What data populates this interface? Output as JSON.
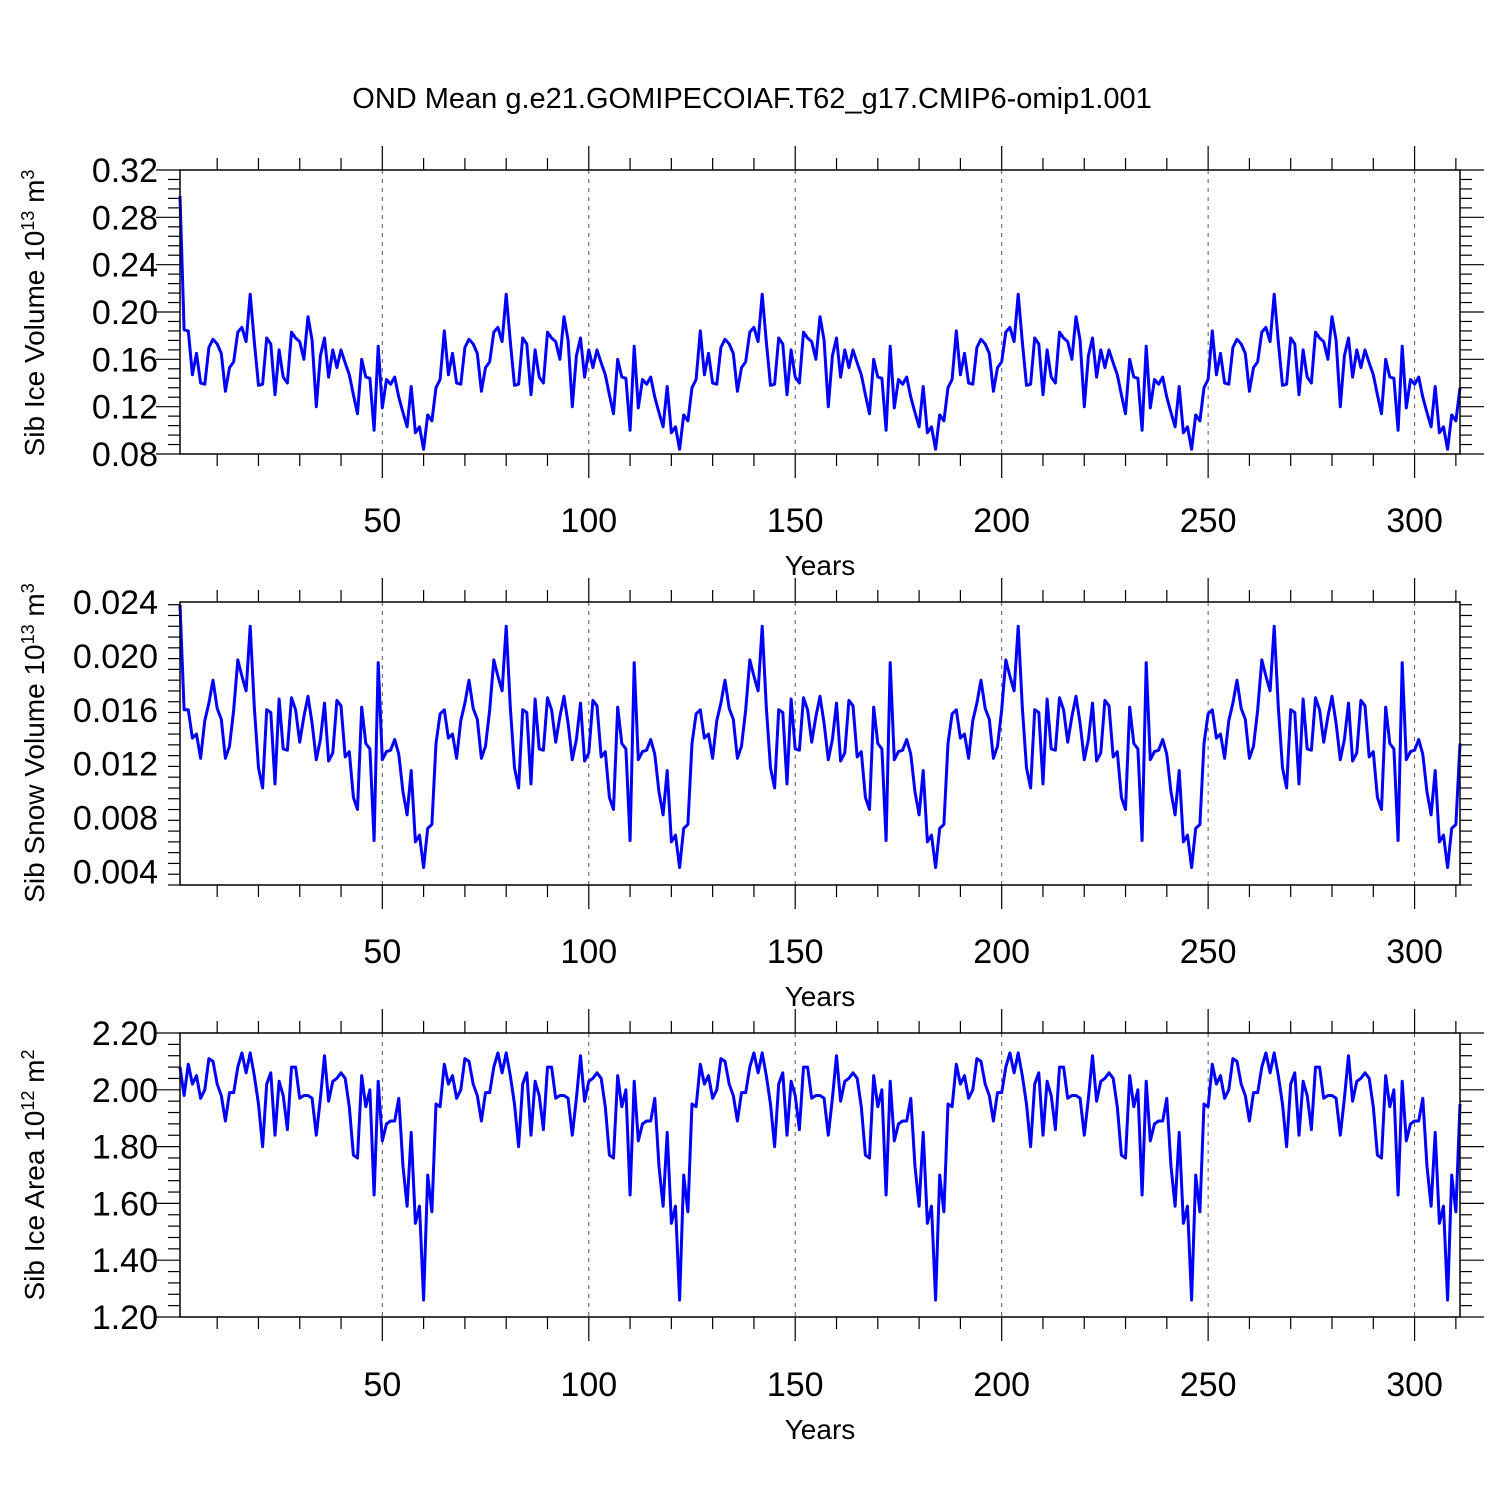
{
  "title": "OND Mean g.e21.GOMIPECOIAF.T62_g17.CMIP6-omip1.001",
  "chart_data": [
    {
      "type": "line",
      "xlabel": "Years",
      "ylabel": "Sib Ice Volume",
      "yunit_base": "10",
      "yunit_exp": "13",
      "yunit_sym": "m",
      "yunit_pow": "3",
      "xlim": [
        1,
        311
      ],
      "ylim": [
        0.08,
        0.32
      ],
      "xticks": [
        50,
        100,
        150,
        200,
        250,
        300
      ],
      "xtick_labels": [
        "50",
        "100",
        "150",
        "200",
        "250",
        "300"
      ],
      "yticks": [
        0.08,
        0.12,
        0.16,
        0.2,
        0.24,
        0.28,
        0.32
      ],
      "ytick_labels": [
        "0.08",
        "0.12",
        "0.16",
        "0.20",
        "0.24",
        "0.28",
        "0.32"
      ],
      "grid": "vertical-dashed",
      "color": "#0000ff",
      "head": [
        0.298,
        0.185
      ],
      "cycle": [
        0.184,
        0.147,
        0.165,
        0.14,
        0.139,
        0.17,
        0.177,
        0.173,
        0.165,
        0.133,
        0.153,
        0.158,
        0.183,
        0.187,
        0.175,
        0.215,
        0.175,
        0.138,
        0.139,
        0.178,
        0.173,
        0.13,
        0.168,
        0.145,
        0.14,
        0.183,
        0.178,
        0.175,
        0.16,
        0.196,
        0.176,
        0.12,
        0.163,
        0.178,
        0.145,
        0.168,
        0.153,
        0.168,
        0.157,
        0.147,
        0.13,
        0.114,
        0.16,
        0.145,
        0.144,
        0.1,
        0.171,
        0.119,
        0.143,
        0.139,
        0.145,
        0.128,
        0.115,
        0.103,
        0.137,
        0.098,
        0.103,
        0.084,
        0.113,
        0.108,
        0.136,
        0.143
      ]
    },
    {
      "type": "line",
      "xlabel": "Years",
      "ylabel": "Sib Snow Volume",
      "yunit_base": "10",
      "yunit_exp": "13",
      "yunit_sym": "m",
      "yunit_pow": "3",
      "xlim": [
        1,
        311
      ],
      "ylim": [
        0.003,
        0.024
      ],
      "xticks": [
        50,
        100,
        150,
        200,
        250,
        300
      ],
      "xtick_labels": [
        "50",
        "100",
        "150",
        "200",
        "250",
        "300"
      ],
      "yticks": [
        0.004,
        0.008,
        0.012,
        0.016,
        0.02,
        0.024
      ],
      "ytick_labels": [
        "0.004",
        "0.008",
        "0.012",
        "0.016",
        "0.020",
        "0.024"
      ],
      "grid": "vertical-dashed",
      "color": "#0000ff",
      "head": [
        0.0238,
        0.016
      ],
      "cycle": [
        0.016,
        0.0139,
        0.0142,
        0.0124,
        0.0152,
        0.0165,
        0.0182,
        0.0161,
        0.0153,
        0.0124,
        0.0133,
        0.016,
        0.0197,
        0.0185,
        0.0174,
        0.0222,
        0.0162,
        0.0117,
        0.0102,
        0.016,
        0.0158,
        0.0105,
        0.0168,
        0.0131,
        0.013,
        0.0169,
        0.016,
        0.0136,
        0.0155,
        0.017,
        0.015,
        0.0123,
        0.0138,
        0.0165,
        0.0122,
        0.0128,
        0.0167,
        0.0163,
        0.0125,
        0.0129,
        0.0095,
        0.0086,
        0.0162,
        0.0135,
        0.0131,
        0.0063,
        0.0195,
        0.0123,
        0.0129,
        0.013,
        0.0138,
        0.0127,
        0.0099,
        0.0082,
        0.0115,
        0.0062,
        0.0067,
        0.0043,
        0.0072,
        0.0075,
        0.0135,
        0.0157
      ]
    },
    {
      "type": "line",
      "xlabel": "Years",
      "ylabel": "Sib Ice Area",
      "yunit_base": "10",
      "yunit_exp": "12",
      "yunit_sym": "m",
      "yunit_pow": "2",
      "xlim": [
        1,
        311
      ],
      "ylim": [
        1.2,
        2.2
      ],
      "xticks": [
        50,
        100,
        150,
        200,
        250,
        300
      ],
      "xtick_labels": [
        "50",
        "100",
        "150",
        "200",
        "250",
        "300"
      ],
      "yticks": [
        1.2,
        1.4,
        1.6,
        1.8,
        2.0,
        2.2
      ],
      "ytick_labels": [
        "1.20",
        "1.40",
        "1.60",
        "1.80",
        "2.00",
        "2.20"
      ],
      "grid": "vertical-dashed",
      "color": "#0000ff",
      "head": [
        2.08,
        1.98
      ],
      "cycle": [
        2.09,
        2.02,
        2.05,
        1.97,
        2.0,
        2.11,
        2.1,
        2.02,
        1.98,
        1.89,
        1.99,
        1.99,
        2.08,
        2.13,
        2.06,
        2.13,
        2.05,
        1.95,
        1.8,
        2.02,
        2.06,
        1.84,
        2.03,
        1.98,
        1.86,
        2.08,
        2.08,
        1.97,
        1.98,
        1.98,
        1.97,
        1.84,
        1.97,
        2.12,
        1.96,
        2.03,
        2.04,
        2.06,
        2.04,
        1.94,
        1.77,
        1.76,
        2.05,
        1.94,
        2.0,
        1.63,
        2.03,
        1.82,
        1.88,
        1.89,
        1.89,
        1.97,
        1.73,
        1.59,
        1.85,
        1.53,
        1.59,
        1.26,
        1.7,
        1.57,
        1.95,
        1.94
      ]
    }
  ]
}
